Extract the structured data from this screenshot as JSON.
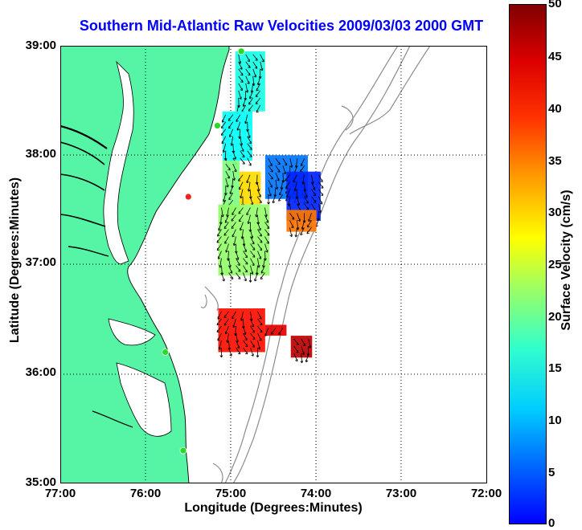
{
  "title": "Southern Mid-Atlantic Raw Velocities 2009/03/03 2000 GMT",
  "axes": {
    "xlabel": "Longitude (Degrees:Minutes)",
    "ylabel": "Latitude (Degrees:Minutes)",
    "xticks": [
      "77:00",
      "76:00",
      "75:00",
      "74:00",
      "73:00",
      "72:00"
    ],
    "yticks": [
      "39:00",
      "38:00",
      "37:00",
      "36:00",
      "35:00"
    ],
    "xlim": [
      -77,
      -72
    ],
    "ylim": [
      35,
      39
    ],
    "grid": "dotted"
  },
  "colorbar": {
    "label": "Surface Velocity (cm/s)",
    "ticks": [
      "50",
      "45",
      "40",
      "35",
      "30",
      "25",
      "20",
      "15",
      "10",
      "5",
      "0"
    ],
    "range": [
      0,
      50
    ],
    "colormap": "jet"
  },
  "colors": {
    "land": "#55f5a5",
    "coastline": "#000000",
    "bathymetry": "#8c8c8c",
    "title": "#0000ff",
    "station_green": "#22dd22",
    "station_red": "#ee2222"
  },
  "stations": [
    {
      "lon": -74.88,
      "lat": 38.95,
      "status": "green"
    },
    {
      "lon": -75.16,
      "lat": 38.27,
      "status": "green"
    },
    {
      "lon": -75.5,
      "lat": 37.62,
      "status": "red"
    },
    {
      "lon": -75.77,
      "lat": 36.2,
      "status": "green"
    },
    {
      "lon": -75.56,
      "lat": 35.3,
      "status": "green"
    }
  ],
  "velocity_regions": [
    {
      "lon": [
        -74.95,
        -74.6
      ],
      "lat": [
        38.4,
        38.95
      ],
      "speed": 20
    },
    {
      "lon": [
        -75.1,
        -74.75
      ],
      "lat": [
        37.95,
        38.4
      ],
      "speed": 19
    },
    {
      "lon": [
        -75.1,
        -74.9
      ],
      "lat": [
        37.45,
        37.95
      ],
      "speed": 25
    },
    {
      "lon": [
        -74.9,
        -74.65
      ],
      "lat": [
        37.55,
        37.85
      ],
      "speed": 33
    },
    {
      "lon": [
        -74.6,
        -74.1
      ],
      "lat": [
        37.6,
        38.0
      ],
      "speed": 12
    },
    {
      "lon": [
        -74.35,
        -73.95
      ],
      "lat": [
        37.4,
        37.85
      ],
      "speed": 8
    },
    {
      "lon": [
        -74.35,
        -74.0
      ],
      "lat": [
        37.3,
        37.5
      ],
      "speed": 38
    },
    {
      "lon": [
        -75.15,
        -74.55
      ],
      "lat": [
        36.9,
        37.55
      ],
      "speed": 26
    },
    {
      "lon": [
        -75.15,
        -74.6
      ],
      "lat": [
        36.2,
        36.6
      ],
      "speed": 43
    },
    {
      "lon": [
        -74.6,
        -74.35
      ],
      "lat": [
        36.35,
        36.45
      ],
      "speed": 45
    },
    {
      "lon": [
        -74.3,
        -74.05
      ],
      "lat": [
        36.15,
        36.35
      ],
      "speed": 47
    }
  ]
}
